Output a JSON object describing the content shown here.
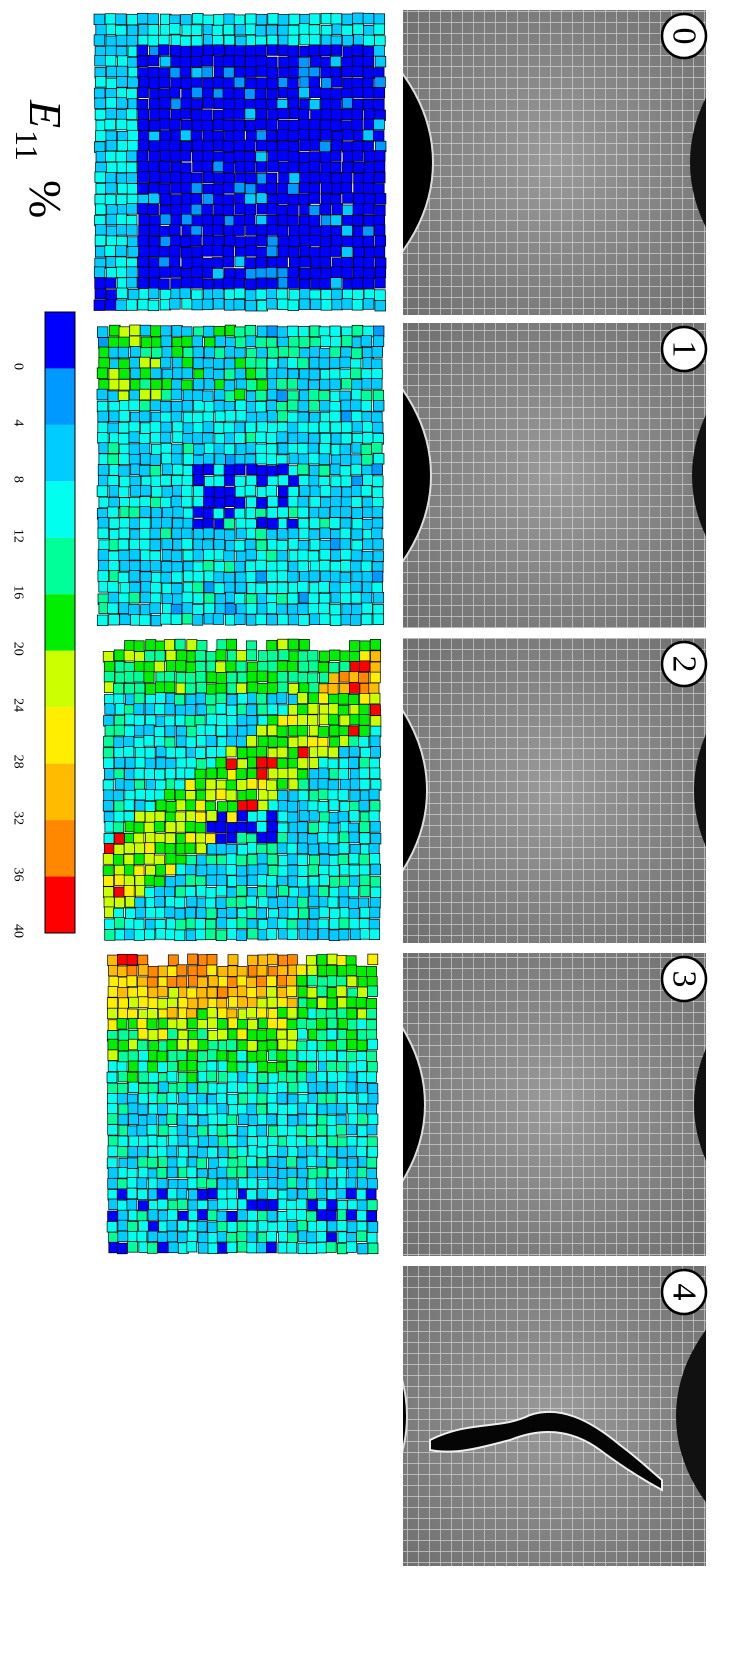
{
  "figure": {
    "title": {
      "symbol": "E",
      "subscript": "11",
      "unit": "%"
    },
    "panels": [
      "0",
      "1",
      "2",
      "3",
      "4"
    ],
    "colorbar": {
      "colors": [
        "#0000ff",
        "#0099ff",
        "#00ccff",
        "#00ffee",
        "#00ff99",
        "#00ee00",
        "#ccff00",
        "#ffee00",
        "#ffbb00",
        "#ff8800",
        "#ff0000"
      ],
      "ticks": [
        "0",
        "4",
        "8",
        "12",
        "16",
        "20",
        "24",
        "28",
        "32",
        "36",
        "40"
      ]
    }
  }
}
